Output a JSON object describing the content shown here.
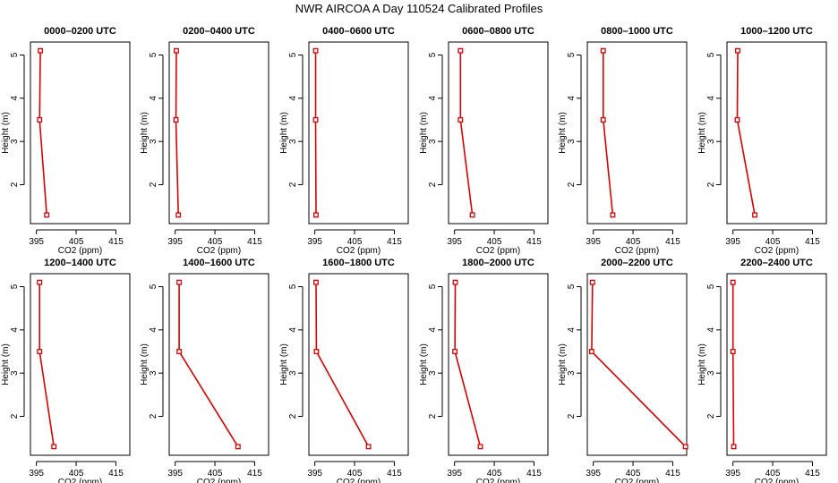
{
  "page": {
    "title": "NWR AIRCOA A  Day 110524  Calibrated Profiles"
  },
  "colors": {
    "series": "#dd0000",
    "axis": "#000000",
    "background": "#ffffff"
  },
  "chart_data": [
    {
      "type": "line",
      "title": "0000–0200 UTC",
      "xlabel": "CO2 (ppm)",
      "ylabel": "Height (m)",
      "xlim": [
        393.5,
        418.5
      ],
      "ylim": [
        1.1,
        5.3
      ],
      "xticks": [
        395,
        405,
        415
      ],
      "yticks": [
        2,
        3,
        4,
        5
      ],
      "x": [
        396.0,
        395.8,
        397.6
      ],
      "y": [
        5.1,
        3.5,
        1.3
      ]
    },
    {
      "type": "line",
      "title": "0200–0400 UTC",
      "xlabel": "CO2 (ppm)",
      "ylabel": "Height (m)",
      "xlim": [
        393.5,
        418.5
      ],
      "ylim": [
        1.1,
        5.3
      ],
      "xticks": [
        395,
        405,
        415
      ],
      "yticks": [
        2,
        3,
        4,
        5
      ],
      "x": [
        395.3,
        395.2,
        395.8
      ],
      "y": [
        5.1,
        3.5,
        1.3
      ]
    },
    {
      "type": "line",
      "title": "0400–0600 UTC",
      "xlabel": "CO2 (ppm)",
      "ylabel": "Height (m)",
      "xlim": [
        393.5,
        418.5
      ],
      "ylim": [
        1.1,
        5.3
      ],
      "xticks": [
        395,
        405,
        415
      ],
      "yticks": [
        2,
        3,
        4,
        5
      ],
      "x": [
        395.2,
        395.2,
        395.3
      ],
      "y": [
        5.1,
        3.5,
        1.3
      ]
    },
    {
      "type": "line",
      "title": "0600–0800 UTC",
      "xlabel": "CO2 (ppm)",
      "ylabel": "Height (m)",
      "xlim": [
        393.5,
        418.5
      ],
      "ylim": [
        1.1,
        5.3
      ],
      "xticks": [
        395,
        405,
        415
      ],
      "yticks": [
        2,
        3,
        4,
        5
      ],
      "x": [
        396.5,
        396.5,
        399.5
      ],
      "y": [
        5.1,
        3.5,
        1.3
      ]
    },
    {
      "type": "line",
      "title": "0800–1000 UTC",
      "xlabel": "CO2 (ppm)",
      "ylabel": "Height (m)",
      "xlim": [
        393.5,
        418.5
      ],
      "ylim": [
        1.1,
        5.3
      ],
      "xticks": [
        395,
        405,
        415
      ],
      "yticks": [
        2,
        3,
        4,
        5
      ],
      "x": [
        397.5,
        397.5,
        399.9
      ],
      "y": [
        5.1,
        3.5,
        1.3
      ]
    },
    {
      "type": "line",
      "title": "1000–1200 UTC",
      "xlabel": "CO2 (ppm)",
      "ylabel": "Height (m)",
      "xlim": [
        393.5,
        418.5
      ],
      "ylim": [
        1.1,
        5.3
      ],
      "xticks": [
        395,
        405,
        415
      ],
      "yticks": [
        2,
        3,
        4,
        5
      ],
      "x": [
        396.2,
        396.1,
        400.5
      ],
      "y": [
        5.1,
        3.5,
        1.3
      ]
    },
    {
      "type": "line",
      "title": "1200–1400 UTC",
      "xlabel": "CO2 (ppm)",
      "ylabel": "Height (m)",
      "xlim": [
        393.5,
        418.5
      ],
      "ylim": [
        1.1,
        5.3
      ],
      "xticks": [
        395,
        405,
        415
      ],
      "yticks": [
        2,
        3,
        4,
        5
      ],
      "x": [
        395.8,
        395.8,
        399.4
      ],
      "y": [
        5.1,
        3.5,
        1.3
      ]
    },
    {
      "type": "line",
      "title": "1400–1600 UTC",
      "xlabel": "CO2 (ppm)",
      "ylabel": "Height (m)",
      "xlim": [
        393.5,
        418.5
      ],
      "ylim": [
        1.1,
        5.3
      ],
      "xticks": [
        395,
        405,
        415
      ],
      "yticks": [
        2,
        3,
        4,
        5
      ],
      "x": [
        396.0,
        396.0,
        410.8
      ],
      "y": [
        5.1,
        3.5,
        1.3
      ]
    },
    {
      "type": "line",
      "title": "1600–1800 UTC",
      "xlabel": "CO2 (ppm)",
      "ylabel": "Height (m)",
      "xlim": [
        393.5,
        418.5
      ],
      "ylim": [
        1.1,
        5.3
      ],
      "xticks": [
        395,
        405,
        415
      ],
      "yticks": [
        2,
        3,
        4,
        5
      ],
      "x": [
        395.3,
        395.4,
        408.5
      ],
      "y": [
        5.1,
        3.5,
        1.3
      ]
    },
    {
      "type": "line",
      "title": "1800–2000 UTC",
      "xlabel": "CO2 (ppm)",
      "ylabel": "Height (m)",
      "xlim": [
        393.5,
        418.5
      ],
      "ylim": [
        1.1,
        5.3
      ],
      "xticks": [
        395,
        405,
        415
      ],
      "yticks": [
        2,
        3,
        4,
        5
      ],
      "x": [
        395.2,
        395.1,
        401.5
      ],
      "y": [
        5.1,
        3.5,
        1.3
      ]
    },
    {
      "type": "line",
      "title": "2000–2200 UTC",
      "xlabel": "CO2 (ppm)",
      "ylabel": "Height (m)",
      "xlim": [
        393.5,
        418.5
      ],
      "ylim": [
        1.1,
        5.3
      ],
      "xticks": [
        395,
        405,
        415
      ],
      "yticks": [
        2,
        3,
        4,
        5
      ],
      "x": [
        394.8,
        394.6,
        418.2
      ],
      "y": [
        5.1,
        3.5,
        1.3
      ]
    },
    {
      "type": "line",
      "title": "2200–2400 UTC",
      "xlabel": "CO2 (ppm)",
      "ylabel": "Height (m)",
      "xlim": [
        393.5,
        418.5
      ],
      "ylim": [
        1.1,
        5.3
      ],
      "xticks": [
        395,
        405,
        415
      ],
      "yticks": [
        2,
        3,
        4,
        5
      ],
      "x": [
        395.0,
        395.0,
        395.2
      ],
      "y": [
        5.1,
        3.5,
        1.3
      ]
    }
  ]
}
